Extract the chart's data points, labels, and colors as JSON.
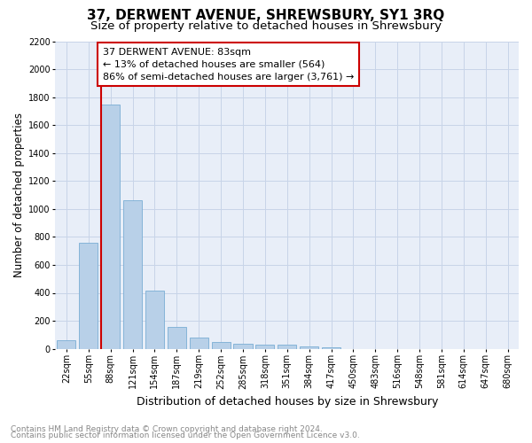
{
  "title": "37, DERWENT AVENUE, SHREWSBURY, SY1 3RQ",
  "subtitle": "Size of property relative to detached houses in Shrewsbury",
  "xlabel": "Distribution of detached houses by size in Shrewsbury",
  "ylabel": "Number of detached properties",
  "footnote1": "Contains HM Land Registry data © Crown copyright and database right 2024.",
  "footnote2": "Contains public sector information licensed under the Open Government Licence v3.0.",
  "categories": [
    "22sqm",
    "55sqm",
    "88sqm",
    "121sqm",
    "154sqm",
    "187sqm",
    "219sqm",
    "252sqm",
    "285sqm",
    "318sqm",
    "351sqm",
    "384sqm",
    "417sqm",
    "450sqm",
    "483sqm",
    "516sqm",
    "548sqm",
    "581sqm",
    "614sqm",
    "647sqm",
    "680sqm"
  ],
  "values": [
    60,
    760,
    1750,
    1060,
    415,
    155,
    80,
    50,
    35,
    30,
    30,
    15,
    10,
    0,
    0,
    0,
    0,
    0,
    0,
    0,
    0
  ],
  "bar_color": "#b8d0e8",
  "bar_edge_color": "#7aadd4",
  "vline_color": "#cc0000",
  "annotation_line1": "37 DERWENT AVENUE: 83sqm",
  "annotation_line2": "← 13% of detached houses are smaller (564)",
  "annotation_line3": "86% of semi-detached houses are larger (3,761) →",
  "annotation_box_facecolor": "#ffffff",
  "annotation_box_edgecolor": "#cc0000",
  "ylim": [
    0,
    2200
  ],
  "yticks": [
    0,
    200,
    400,
    600,
    800,
    1000,
    1200,
    1400,
    1600,
    1800,
    2000,
    2200
  ],
  "grid_color": "#c8d4e8",
  "bg_color": "#e8eef8",
  "title_fontsize": 11,
  "subtitle_fontsize": 9.5,
  "ylabel_fontsize": 8.5,
  "xlabel_fontsize": 9,
  "tick_fontsize": 7,
  "annotation_fontsize": 8,
  "footnote_fontsize": 6.5
}
